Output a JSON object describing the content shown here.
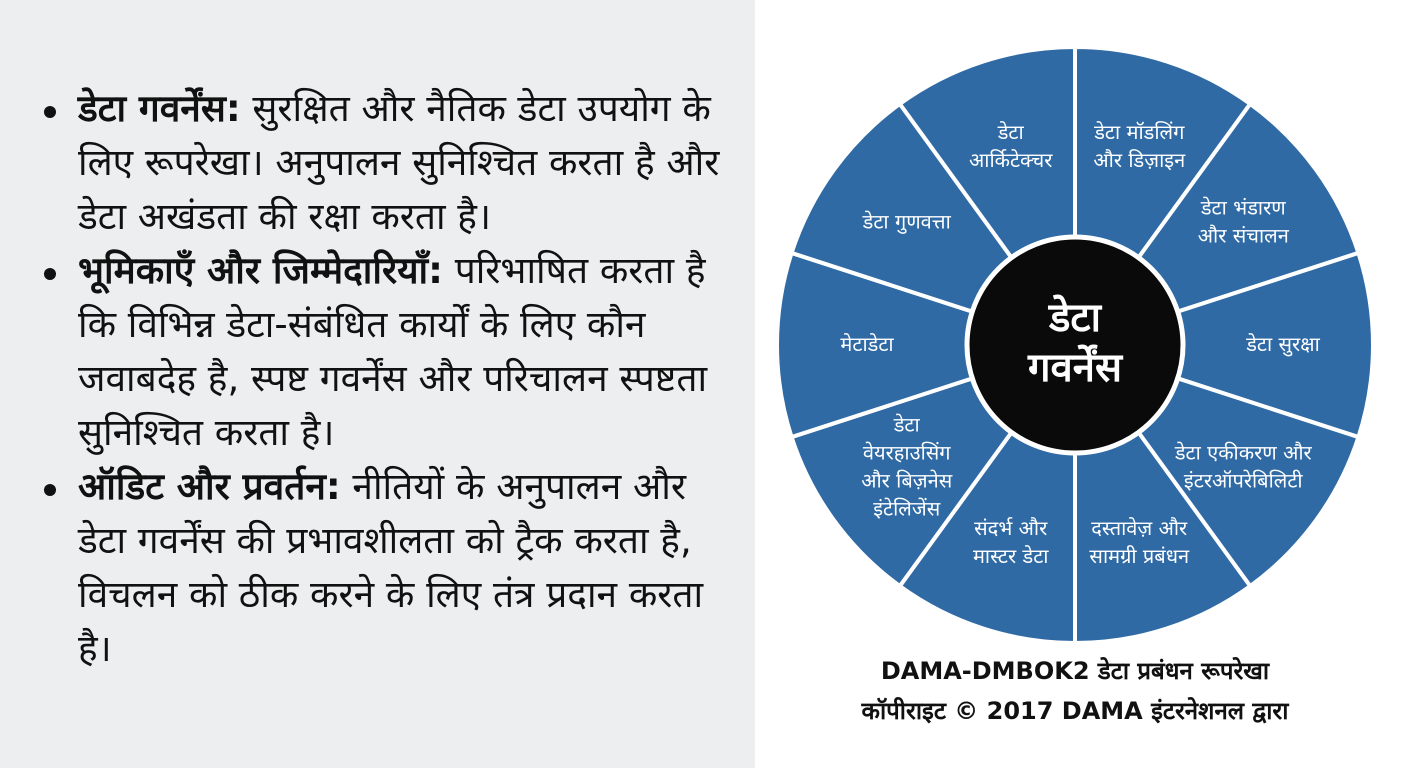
{
  "bullets": [
    {
      "term": "डेटा गवर्नेंस:",
      "text": "सुरक्षित और नैतिक डेटा उपयोग के लिए रूपरेखा। अनुपालन सुनिश्चित करता है और डेटा अखंडता की रक्षा करता है।"
    },
    {
      "term": "भूमिकाएँ और जिम्मेदारियाँ:",
      "text": "परिभाषित करता है कि विभिन्न डेटा-संबंधित कार्यों के लिए कौन जवाबदेह है, स्पष्ट गवर्नेंस और परिचालन स्पष्टता सुनिश्चित करता है।"
    },
    {
      "term": "ऑडिट और प्रवर्तन:",
      "text": "नीतियों के अनुपालन और डेटा गवर्नेंस की प्रभावशीलता को ट्रैक करता है, विचलन को ठीक करने के लिए तंत्र प्रदान करता है।"
    }
  ],
  "diagram": {
    "center": [
      "डेटा",
      "गवर्नेंस"
    ],
    "segments": [
      [
        "डेटा मॉडलिंग",
        "और डिज़ाइन"
      ],
      [
        "डेटा भंडारण",
        "और संचालन"
      ],
      [
        "डेटा सुरक्षा"
      ],
      [
        "डेटा एकीकरण और",
        "इंटरऑपरेबिलिटी"
      ],
      [
        "दस्तावेज़ और",
        "सामग्री प्रबंधन"
      ],
      [
        "संदर्भ और",
        "मास्टर डेटा"
      ],
      [
        "डेटा",
        "वेयरहाउसिंग",
        "और बिज़नेस",
        "इंटेलिजेंस"
      ],
      [
        "मेटाडेटा"
      ],
      [
        "डेटा गुणवत्ता"
      ],
      [
        "डेटा",
        "आर्किटेक्चर"
      ]
    ],
    "caption": [
      "DAMA-DMBOK2 डेटा प्रबंधन रूपरेखा",
      "कॉपीराइट © 2017 DAMA इंटरनेशनल द्वारा"
    ]
  }
}
